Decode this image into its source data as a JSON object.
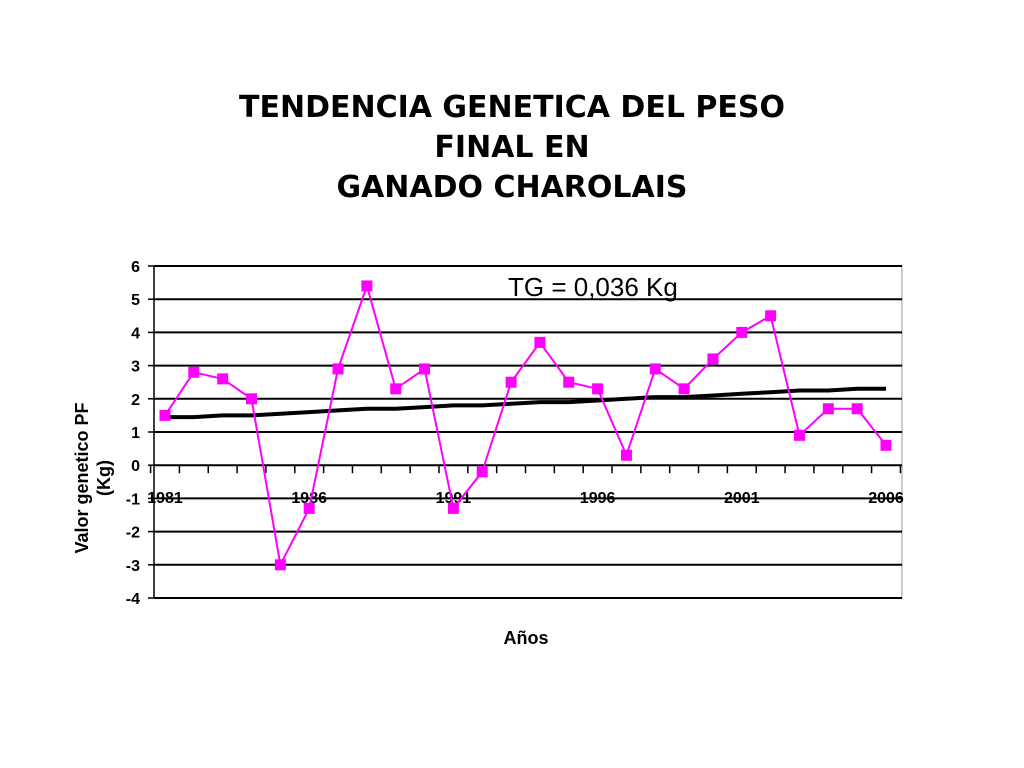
{
  "chart_data": {
    "type": "line",
    "title_lines": [
      "TENDENCIA GENETICA DEL PESO",
      "FINAL EN",
      "GANADO CHAROLAIS"
    ],
    "xlabel": "Años",
    "ylabel_lines": [
      "Valor genetico PF",
      "(Kg)"
    ],
    "annotation": "TG = 0,036 Kg",
    "ylim": [
      -4,
      6
    ],
    "yticks": [
      "6",
      "5",
      "4",
      "3",
      "2",
      "1",
      "0",
      "-1",
      "-2",
      "-3",
      "-4"
    ],
    "xlim": [
      1981,
      2006
    ],
    "xtick_labels": [
      "1981",
      "1986",
      "1991",
      "1996",
      "2001",
      "2006"
    ],
    "grid": "horizontal",
    "series": [
      {
        "color": "#ff00ff",
        "marker": "square",
        "x": [
          1981,
          1982,
          1983,
          1984,
          1985,
          1986,
          1987,
          1988,
          1989,
          1990,
          1991,
          1992,
          1993,
          1994,
          1995,
          1996,
          1997,
          1998,
          1999,
          2000,
          2001,
          2002,
          2003,
          2004,
          2005,
          2006
        ],
        "values": [
          1.5,
          2.8,
          2.6,
          2.0,
          -3.0,
          -1.3,
          2.9,
          5.4,
          2.3,
          2.9,
          -1.3,
          -0.2,
          2.5,
          3.7,
          2.5,
          2.3,
          0.3,
          2.9,
          2.3,
          3.2,
          4.0,
          4.5,
          0.9,
          1.7,
          1.7,
          0.6
        ]
      },
      {
        "color": "#000000",
        "marker": "none",
        "x": [
          1981,
          1982,
          1983,
          1984,
          1985,
          1986,
          1987,
          1988,
          1989,
          1990,
          1991,
          1992,
          1993,
          1994,
          1995,
          1996,
          1997,
          1998,
          1999,
          2000,
          2001,
          2002,
          2003,
          2004,
          2005,
          2006
        ],
        "values": [
          1.45,
          1.45,
          1.5,
          1.5,
          1.55,
          1.6,
          1.65,
          1.7,
          1.7,
          1.75,
          1.8,
          1.8,
          1.85,
          1.9,
          1.9,
          1.95,
          2.0,
          2.05,
          2.05,
          2.1,
          2.15,
          2.2,
          2.25,
          2.25,
          2.3,
          2.3
        ]
      }
    ]
  }
}
